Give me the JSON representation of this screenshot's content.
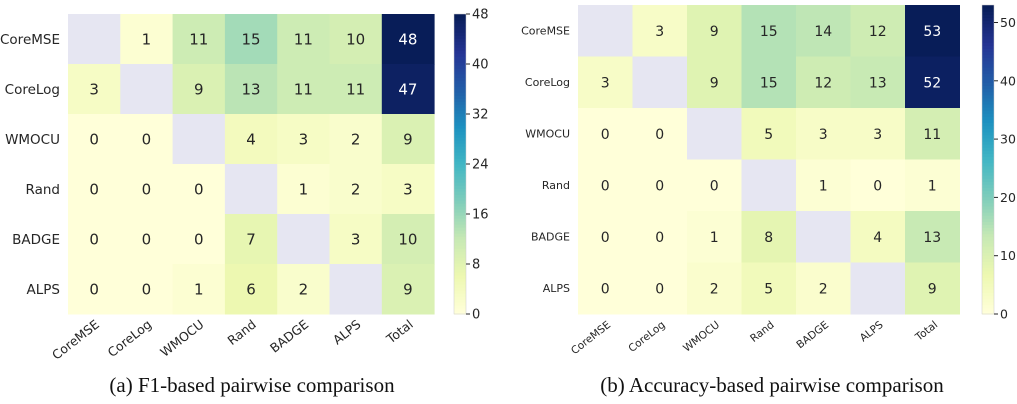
{
  "chart_data": [
    {
      "type": "heatmap",
      "caption": "(a) F1-based pairwise comparison",
      "rows": [
        "CoreMSE",
        "CoreLog",
        "WMOCU",
        "Rand",
        "BADGE",
        "ALPS"
      ],
      "columns": [
        "CoreMSE",
        "CoreLog",
        "WMOCU",
        "Rand",
        "BADGE",
        "ALPS",
        "Total"
      ],
      "values": [
        [
          null,
          1,
          11,
          15,
          11,
          10,
          48
        ],
        [
          3,
          null,
          9,
          13,
          11,
          11,
          47
        ],
        [
          0,
          0,
          null,
          4,
          3,
          2,
          9
        ],
        [
          0,
          0,
          0,
          null,
          1,
          2,
          3
        ],
        [
          0,
          0,
          0,
          7,
          null,
          3,
          10
        ],
        [
          0,
          0,
          1,
          6,
          2,
          null,
          9
        ]
      ],
      "colormap": "YlGnBu",
      "colorbar": {
        "min": 0,
        "max": 48,
        "ticks": [
          0,
          8,
          16,
          24,
          32,
          40,
          48
        ]
      },
      "diagonal_color": "#e6e6f2"
    },
    {
      "type": "heatmap",
      "caption": "(b) Accuracy-based pairwise comparison",
      "rows": [
        "CoreMSE",
        "CoreLog",
        "WMOCU",
        "Rand",
        "BADGE",
        "ALPS"
      ],
      "columns": [
        "CoreMSE",
        "CoreLog",
        "WMOCU",
        "Rand",
        "BADGE",
        "ALPS",
        "Total"
      ],
      "values": [
        [
          null,
          3,
          9,
          15,
          14,
          12,
          53
        ],
        [
          3,
          null,
          9,
          15,
          12,
          13,
          52
        ],
        [
          0,
          0,
          null,
          5,
          3,
          3,
          11
        ],
        [
          0,
          0,
          0,
          null,
          1,
          0,
          1
        ],
        [
          0,
          0,
          1,
          8,
          null,
          4,
          13
        ],
        [
          0,
          0,
          2,
          5,
          2,
          null,
          9
        ]
      ],
      "colormap": "YlGnBu",
      "colorbar": {
        "min": 0,
        "max": 53,
        "ticks": [
          0,
          10,
          20,
          30,
          40,
          50
        ]
      },
      "diagonal_color": "#e6e6f2"
    }
  ]
}
